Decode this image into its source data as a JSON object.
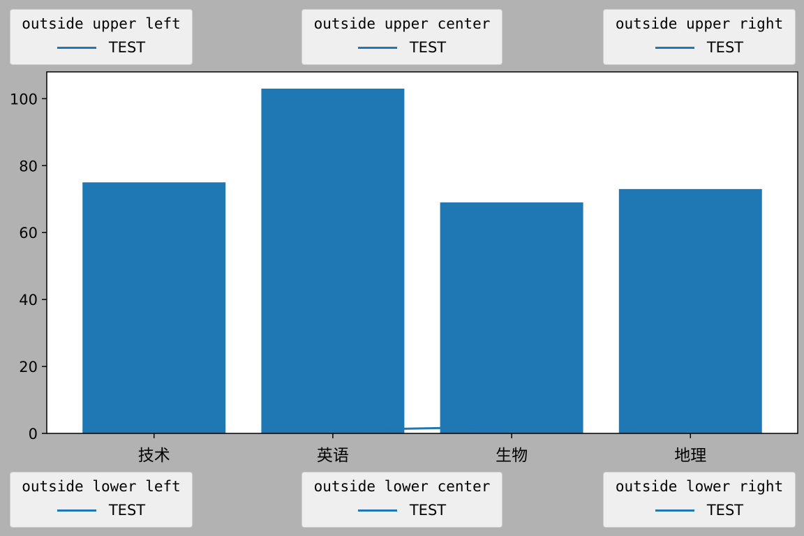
{
  "legends": {
    "upper_left": {
      "title": "outside upper left",
      "entry": "TEST"
    },
    "upper_center": {
      "title": "outside upper center",
      "entry": "TEST"
    },
    "upper_right": {
      "title": "outside upper right",
      "entry": "TEST"
    },
    "lower_left": {
      "title": "outside lower left",
      "entry": "TEST"
    },
    "lower_center": {
      "title": "outside lower center",
      "entry": "TEST"
    },
    "lower_right": {
      "title": "outside lower right",
      "entry": "TEST"
    }
  },
  "colors": {
    "bar": "#1f77b4",
    "line": "#1f77b4",
    "figure_bg": "#b2b2b2",
    "axes_bg": "#ffffff",
    "legend_bg": "#efefef"
  },
  "chart_data": {
    "type": "bar",
    "categories": [
      "技术",
      "英语",
      "生物",
      "地理"
    ],
    "values": [
      75,
      103,
      69,
      73
    ],
    "line": {
      "name": "TEST",
      "x": [
        1,
        2
      ],
      "y": [
        1,
        2
      ]
    },
    "ylim": [
      0,
      108
    ],
    "yticks": [
      0,
      20,
      40,
      60,
      80,
      100
    ],
    "grid": false,
    "legend_placement": [
      "outside upper left",
      "outside upper center",
      "outside upper right",
      "outside lower left",
      "outside lower center",
      "outside lower right"
    ]
  }
}
